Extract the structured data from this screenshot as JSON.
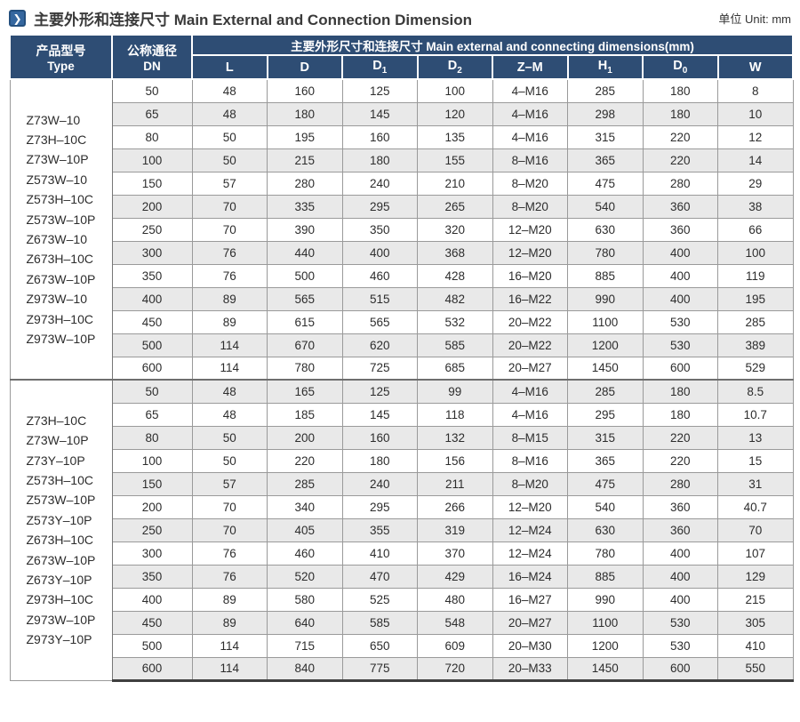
{
  "page": {
    "title": "主要外形和连接尺寸 Main External and Connection Dimension",
    "unit_label": "单位 Unit: mm",
    "icon": "chevron-right-icon",
    "icon_glyph": "❯"
  },
  "colors": {
    "header_bg": "#2e4d74",
    "icon_bg": "#35679f",
    "stripe": "#e9e9e9",
    "grid": "#9a9a9a",
    "text": "#2d2d2d"
  },
  "table": {
    "col_type_zh": "产品型号",
    "col_type_en": "Type",
    "col_dn_zh": "公称通径",
    "col_dn_en": "DN",
    "group_header": "主要外形尺寸和连接尺寸 Main external and connecting dimensions(mm)",
    "columns": [
      {
        "label": "L",
        "sub": ""
      },
      {
        "label": "D",
        "sub": ""
      },
      {
        "label": "D",
        "sub": "1"
      },
      {
        "label": "D",
        "sub": "2"
      },
      {
        "label": "Z–M",
        "sub": ""
      },
      {
        "label": "H",
        "sub": "1"
      },
      {
        "label": "D",
        "sub": "0"
      },
      {
        "label": "W",
        "sub": ""
      }
    ],
    "groups": [
      {
        "types": [
          "Z73W–10",
          "Z73H–10C",
          "Z73W–10P",
          "Z573W–10",
          "Z573H–10C",
          "Z573W–10P",
          "Z673W–10",
          "Z673H–10C",
          "Z673W–10P",
          "Z973W–10",
          "Z973H–10C",
          "Z973W–10P"
        ],
        "rows": [
          {
            "dn": "50",
            "values": [
              "48",
              "160",
              "125",
              "100",
              "4–M16",
              "285",
              "180",
              "8"
            ]
          },
          {
            "dn": "65",
            "values": [
              "48",
              "180",
              "145",
              "120",
              "4–M16",
              "298",
              "180",
              "10"
            ]
          },
          {
            "dn": "80",
            "values": [
              "50",
              "195",
              "160",
              "135",
              "4–M16",
              "315",
              "220",
              "12"
            ]
          },
          {
            "dn": "100",
            "values": [
              "50",
              "215",
              "180",
              "155",
              "8–M16",
              "365",
              "220",
              "14"
            ]
          },
          {
            "dn": "150",
            "values": [
              "57",
              "280",
              "240",
              "210",
              "8–M20",
              "475",
              "280",
              "29"
            ]
          },
          {
            "dn": "200",
            "values": [
              "70",
              "335",
              "295",
              "265",
              "8–M20",
              "540",
              "360",
              "38"
            ]
          },
          {
            "dn": "250",
            "values": [
              "70",
              "390",
              "350",
              "320",
              "12–M20",
              "630",
              "360",
              "66"
            ]
          },
          {
            "dn": "300",
            "values": [
              "76",
              "440",
              "400",
              "368",
              "12–M20",
              "780",
              "400",
              "100"
            ]
          },
          {
            "dn": "350",
            "values": [
              "76",
              "500",
              "460",
              "428",
              "16–M20",
              "885",
              "400",
              "119"
            ]
          },
          {
            "dn": "400",
            "values": [
              "89",
              "565",
              "515",
              "482",
              "16–M22",
              "990",
              "400",
              "195"
            ]
          },
          {
            "dn": "450",
            "values": [
              "89",
              "615",
              "565",
              "532",
              "20–M22",
              "1100",
              "530",
              "285"
            ]
          },
          {
            "dn": "500",
            "values": [
              "114",
              "670",
              "620",
              "585",
              "20–M22",
              "1200",
              "530",
              "389"
            ]
          },
          {
            "dn": "600",
            "values": [
              "114",
              "780",
              "725",
              "685",
              "20–M27",
              "1450",
              "600",
              "529"
            ]
          }
        ]
      },
      {
        "types": [
          "Z73H–10C",
          "Z73W–10P",
          "Z73Y–10P",
          "Z573H–10C",
          "Z573W–10P",
          "Z573Y–10P",
          "Z673H–10C",
          "Z673W–10P",
          "Z673Y–10P",
          "Z973H–10C",
          "Z973W–10P",
          "Z973Y–10P"
        ],
        "rows": [
          {
            "dn": "50",
            "values": [
              "48",
              "165",
              "125",
              "99",
              "4–M16",
              "285",
              "180",
              "8.5"
            ]
          },
          {
            "dn": "65",
            "values": [
              "48",
              "185",
              "145",
              "118",
              "4–M16",
              "295",
              "180",
              "10.7"
            ]
          },
          {
            "dn": "80",
            "values": [
              "50",
              "200",
              "160",
              "132",
              "8–M15",
              "315",
              "220",
              "13"
            ]
          },
          {
            "dn": "100",
            "values": [
              "50",
              "220",
              "180",
              "156",
              "8–M16",
              "365",
              "220",
              "15"
            ]
          },
          {
            "dn": "150",
            "values": [
              "57",
              "285",
              "240",
              "211",
              "8–M20",
              "475",
              "280",
              "31"
            ]
          },
          {
            "dn": "200",
            "values": [
              "70",
              "340",
              "295",
              "266",
              "12–M20",
              "540",
              "360",
              "40.7"
            ]
          },
          {
            "dn": "250",
            "values": [
              "70",
              "405",
              "355",
              "319",
              "12–M24",
              "630",
              "360",
              "70"
            ]
          },
          {
            "dn": "300",
            "values": [
              "76",
              "460",
              "410",
              "370",
              "12–M24",
              "780",
              "400",
              "107"
            ]
          },
          {
            "dn": "350",
            "values": [
              "76",
              "520",
              "470",
              "429",
              "16–M24",
              "885",
              "400",
              "129"
            ]
          },
          {
            "dn": "400",
            "values": [
              "89",
              "580",
              "525",
              "480",
              "16–M27",
              "990",
              "400",
              "215"
            ]
          },
          {
            "dn": "450",
            "values": [
              "89",
              "640",
              "585",
              "548",
              "20–M27",
              "1100",
              "530",
              "305"
            ]
          },
          {
            "dn": "500",
            "values": [
              "114",
              "715",
              "650",
              "609",
              "20–M30",
              "1200",
              "530",
              "410"
            ]
          },
          {
            "dn": "600",
            "values": [
              "114",
              "840",
              "775",
              "720",
              "20–M33",
              "1450",
              "600",
              "550"
            ]
          }
        ]
      }
    ]
  }
}
